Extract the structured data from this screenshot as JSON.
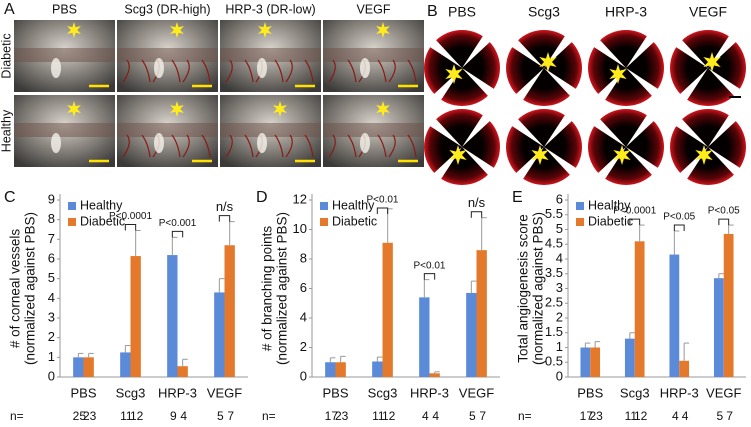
{
  "figure": {
    "panel_a": {
      "letter": "A",
      "columns": [
        "PBS",
        "Scg3 (DR-high)",
        "HRP-3 (DR-low)",
        "VEGF"
      ],
      "rows": [
        "Diabetic",
        "Healthy"
      ]
    },
    "panel_b": {
      "letter": "B",
      "columns": [
        "PBS",
        "Scg3",
        "HRP-3",
        "VEGF"
      ]
    }
  },
  "chart_data": [
    {
      "letter": "C",
      "type": "bar",
      "ylabel": [
        "# of corneal vessels",
        "(normalized against PBS)"
      ],
      "categories": [
        "PBS",
        "Scg3",
        "HRP-3",
        "VEGF"
      ],
      "series": [
        {
          "name": "Healthy",
          "color": "#5b8ad8",
          "values": [
            1,
            1.25,
            6.2,
            4.3
          ],
          "errors": [
            0.2,
            0.35,
            0.9,
            0.7
          ],
          "n": [
            25,
            11,
            9,
            5
          ]
        },
        {
          "name": "Diabetic",
          "color": "#e4792b",
          "values": [
            1,
            6.15,
            0.55,
            6.7
          ],
          "errors": [
            0.2,
            1.3,
            0.35,
            1.2
          ],
          "n": [
            23,
            12,
            4,
            7
          ]
        }
      ],
      "pvalues": [
        null,
        "P<0.0001",
        "P<0.001",
        "n/s"
      ],
      "n_label": "n=",
      "ylim": [
        0,
        9
      ],
      "yticks": [
        0,
        1,
        2,
        3,
        4,
        5,
        6,
        7,
        8,
        9
      ],
      "legend": "upper left"
    },
    {
      "letter": "D",
      "type": "bar",
      "ylabel": [
        "# of branching points",
        "(normalized against PBS)"
      ],
      "categories": [
        "PBS",
        "Scg3",
        "HRP-3",
        "VEGF"
      ],
      "series": [
        {
          "name": "Healthy",
          "color": "#5b8ad8",
          "values": [
            1,
            1.05,
            5.4,
            5.7
          ],
          "errors": [
            0.3,
            0.3,
            1.2,
            0.8
          ],
          "n": [
            17,
            11,
            4,
            5
          ]
        },
        {
          "name": "Diabetic",
          "color": "#e4792b",
          "values": [
            1,
            9.1,
            0.25,
            8.6
          ],
          "errors": [
            0.4,
            2.3,
            0.1,
            2.2
          ],
          "n": [
            23,
            12,
            4,
            7
          ]
        }
      ],
      "pvalues": [
        null,
        "P<0.01",
        "P<0.01",
        "n/s"
      ],
      "n_label": "n=",
      "ylim": [
        0,
        12
      ],
      "yticks": [
        0,
        2,
        4,
        6,
        8,
        10,
        12
      ],
      "legend": "upper left"
    },
    {
      "letter": "E",
      "type": "bar",
      "ylabel": [
        "Total angiogenesis score",
        "(normalized against PBS)"
      ],
      "categories": [
        "PBS",
        "Scg3",
        "HRP-3",
        "VEGF"
      ],
      "series": [
        {
          "name": "Healthy",
          "color": "#5b8ad8",
          "values": [
            1,
            1.3,
            4.15,
            3.35
          ],
          "errors": [
            0.15,
            0.2,
            0.8,
            0.15
          ],
          "n": [
            17,
            11,
            4,
            5
          ]
        },
        {
          "name": "Diabetic",
          "color": "#e4792b",
          "values": [
            1,
            4.6,
            0.55,
            4.85
          ],
          "errors": [
            0.2,
            0.55,
            0.6,
            0.3
          ],
          "n": [
            23,
            12,
            4,
            7
          ]
        }
      ],
      "pvalues": [
        null,
        "P<0.0001",
        "P<0.05",
        "P<0.05"
      ],
      "n_label": "n=",
      "ylim": [
        0,
        6
      ],
      "yticks": [
        0,
        0.5,
        1,
        1.5,
        2,
        2.5,
        3,
        3.5,
        4,
        4.5,
        5,
        5.5,
        6
      ],
      "legend": "upper left"
    }
  ]
}
